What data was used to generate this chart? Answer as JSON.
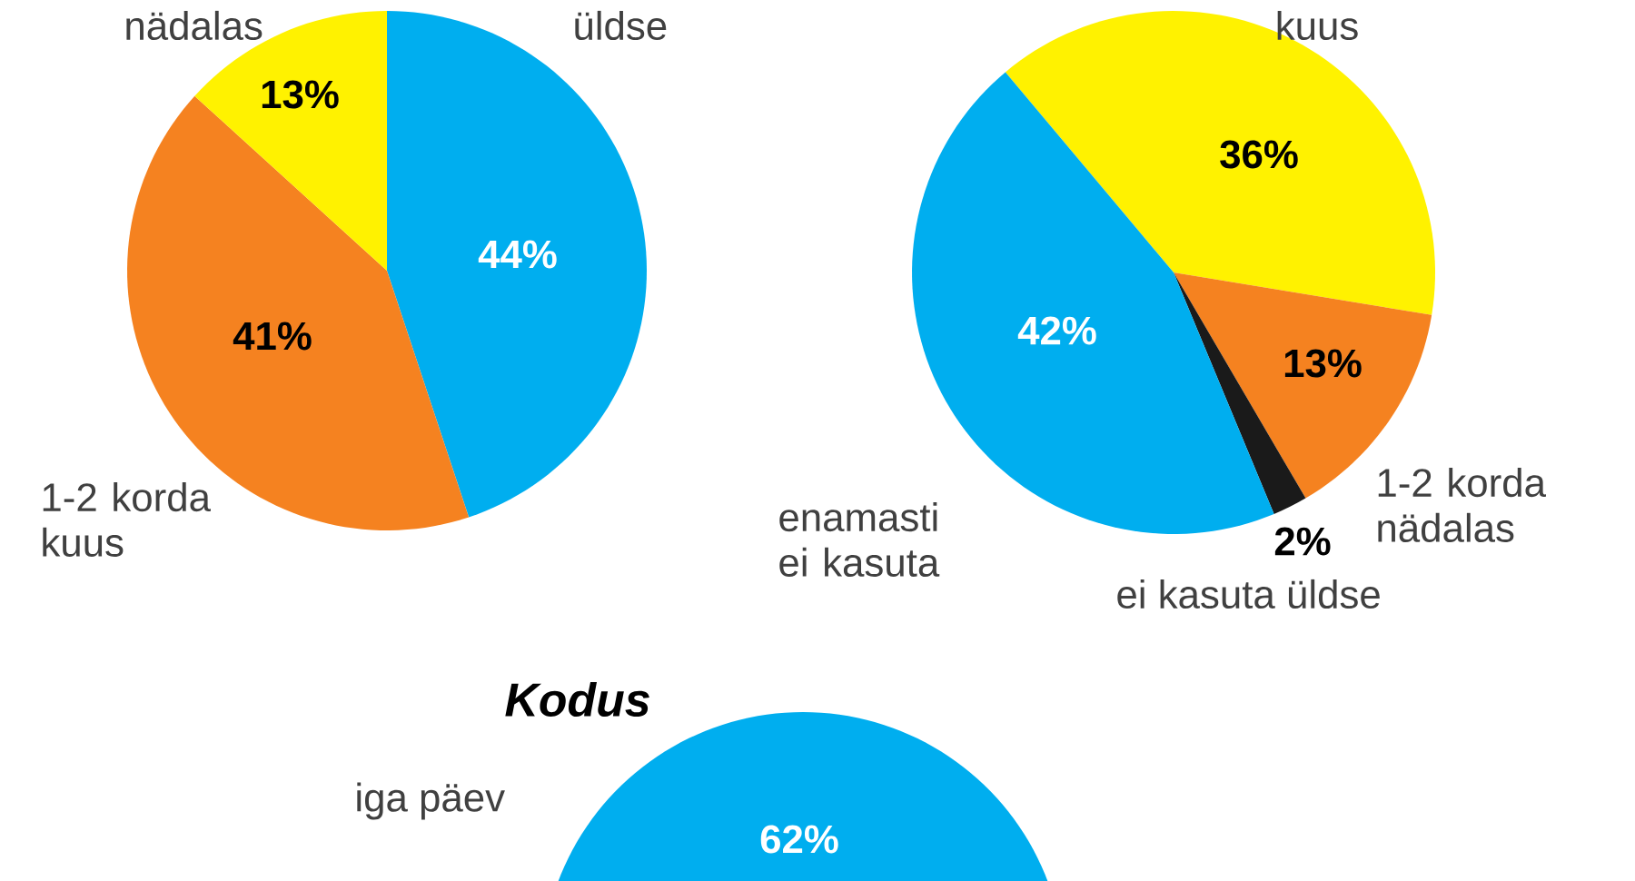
{
  "chart_data": [
    {
      "type": "pie",
      "categories": [
        "üldse",
        "1-2 korda kuus",
        "nädalas"
      ],
      "values": [
        44,
        41,
        13
      ],
      "value_labels": [
        "44%",
        "41%",
        "13%"
      ],
      "colors": [
        "#00aeef",
        "#f58220",
        "#fff200"
      ]
    },
    {
      "type": "pie",
      "categories": [
        "kuus",
        "1-2 korda nädalas",
        "ei kasuta üldse",
        "enamasti ei kasuta"
      ],
      "values": [
        36,
        13,
        2,
        42
      ],
      "value_labels": [
        "36%",
        "13%",
        "2%",
        "42%"
      ],
      "colors": [
        "#fff200",
        "#f58220",
        "#1a1a1a",
        "#00aeef"
      ]
    },
    {
      "type": "pie",
      "title": "Kodus",
      "categories": [
        "iga päev"
      ],
      "values": [
        62
      ],
      "value_labels": [
        "62%"
      ],
      "colors": [
        "#00aeef"
      ]
    }
  ]
}
